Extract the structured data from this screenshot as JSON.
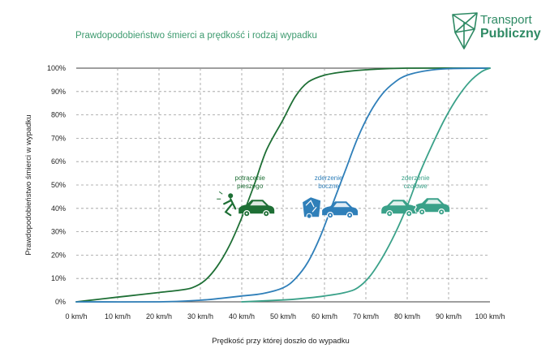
{
  "header": {
    "title": "Prawdopodobieństwo śmierci a prędkość i rodzaj wypadku",
    "logo_line1": "Transport",
    "logo_line2": "Publiczny",
    "logo_icon": "polygon-network-icon"
  },
  "colors": {
    "pedestrian": "#1e6f35",
    "side": "#2f7fb9",
    "frontal": "#3aa189",
    "grid": "#9a9a9a",
    "title": "#3c9a6e"
  },
  "chart_data": {
    "type": "line",
    "title": "Prawdopodobieństwo śmierci a prędkość i rodzaj wypadku",
    "xlabel": "Prędkość przy której doszło do wypadku",
    "ylabel": "Prawdopodobieństwo śmierci w wypadku",
    "xlim": [
      0,
      100
    ],
    "ylim": [
      0,
      100
    ],
    "x_ticks": [
      "0 km/h",
      "10 km/h",
      "20 km/h",
      "30 km/h",
      "40 km/h",
      "50 km/h",
      "60 km/h",
      "70 km/h",
      "80 km/h",
      "90 km/h",
      "100 km/h"
    ],
    "y_ticks": [
      "0%",
      "10%",
      "20%",
      "30%",
      "40%",
      "50%",
      "60%",
      "70%",
      "80%",
      "90%",
      "100%"
    ],
    "grid": "dashed",
    "series": [
      {
        "name": "potrącenie pieszego",
        "color": "#1e6f35",
        "x": [
          0,
          5,
          10,
          15,
          20,
          25,
          28,
          31,
          34,
          37,
          40,
          43,
          46,
          50,
          53,
          56,
          60,
          65,
          70,
          80,
          100
        ],
        "y": [
          0,
          1,
          2,
          3,
          4,
          5,
          6,
          9,
          15,
          24,
          36,
          50,
          65,
          78,
          88,
          94,
          97,
          98.5,
          99.3,
          100,
          100
        ]
      },
      {
        "name": "zderzenie boczne",
        "color": "#2f7fb9",
        "x": [
          0,
          20,
          30,
          35,
          40,
          45,
          50,
          53,
          56,
          59,
          62,
          65,
          68,
          71,
          74,
          77,
          80,
          85,
          90,
          100
        ],
        "y": [
          0,
          0,
          0.7,
          1.5,
          2.5,
          3.5,
          6,
          10,
          17,
          28,
          42,
          56,
          70,
          81,
          89,
          94,
          97,
          99,
          99.8,
          100
        ]
      },
      {
        "name": "zderzenie czołowe",
        "color": "#3aa189",
        "x": [
          40,
          50,
          55,
          60,
          65,
          68,
          71,
          74,
          77,
          80,
          83,
          86,
          89,
          92,
          95,
          98,
          100
        ],
        "y": [
          0,
          0.8,
          1.5,
          2.5,
          4,
          6,
          11,
          19,
          29,
          41,
          55,
          67,
          78,
          87,
          94,
          98.5,
          100
        ]
      }
    ],
    "annotations": [
      {
        "text_lines": [
          "potrącenie",
          "pieszego"
        ],
        "color": "#1e6f35",
        "x": 42,
        "y": 52,
        "icon": "car-hitting-pedestrian-icon"
      },
      {
        "text_lines": [
          "zderzenie",
          "boczne"
        ],
        "color": "#2f7fb9",
        "x": 61,
        "y": 52,
        "icon": "side-collision-icon"
      },
      {
        "text_lines": [
          "zderzenie",
          "czołowe"
        ],
        "color": "#3aa189",
        "x": 82,
        "y": 52,
        "icon": "head-on-collision-icon"
      }
    ]
  }
}
